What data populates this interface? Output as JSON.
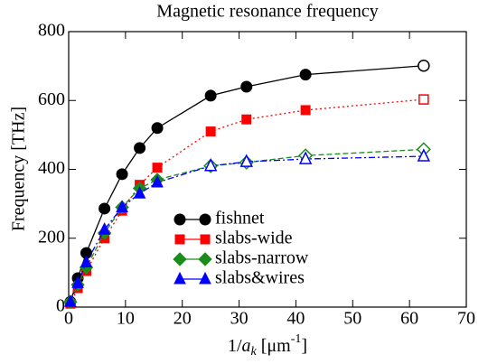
{
  "chart_data": {
    "type": "line",
    "title": "Magnetic resonance frequency",
    "y_label": "Frequency [THz]",
    "x_label_parts": [
      "1/",
      "a",
      "k",
      " [μm",
      "-1",
      "]"
    ],
    "x": [
      0.3,
      1.6,
      3.1,
      6.3,
      9.4,
      12.5,
      15.6,
      25,
      31.3,
      41.7,
      62.5
    ],
    "series": [
      {
        "name": "fishnet",
        "color": "#000000",
        "marker": "circle",
        "dash": "solid",
        "hollow_from": 10,
        "values": [
          15,
          84,
          157,
          286,
          386,
          462,
          520,
          614,
          640,
          675,
          701
        ]
      },
      {
        "name": "slabs-wide",
        "color": "#ff0000",
        "marker": "square",
        "dash": "dotted",
        "hollow_from": 10,
        "values": [
          10,
          55,
          105,
          200,
          280,
          355,
          405,
          510,
          545,
          572,
          603
        ]
      },
      {
        "name": "slabs-narrow",
        "color": "#1a8c1a",
        "marker": "diamond",
        "dash": "dashed",
        "hollow_from": 7,
        "values": [
          15,
          65,
          115,
          215,
          290,
          345,
          370,
          410,
          420,
          440,
          458
        ]
      },
      {
        "name": "slabs&wires",
        "color": "#0000ff",
        "marker": "triangle",
        "dash": "dashdot",
        "hollow_from": 7,
        "values": [
          15,
          70,
          130,
          225,
          290,
          330,
          362,
          410,
          422,
          430,
          438
        ]
      }
    ],
    "xlim": [
      0,
      70
    ],
    "xticks": [
      0,
      10,
      20,
      30,
      40,
      50,
      60,
      70
    ],
    "ylim": [
      0,
      800
    ],
    "yticks": [
      0,
      200,
      400,
      600,
      800
    ],
    "grid": false,
    "legend": "center"
  }
}
